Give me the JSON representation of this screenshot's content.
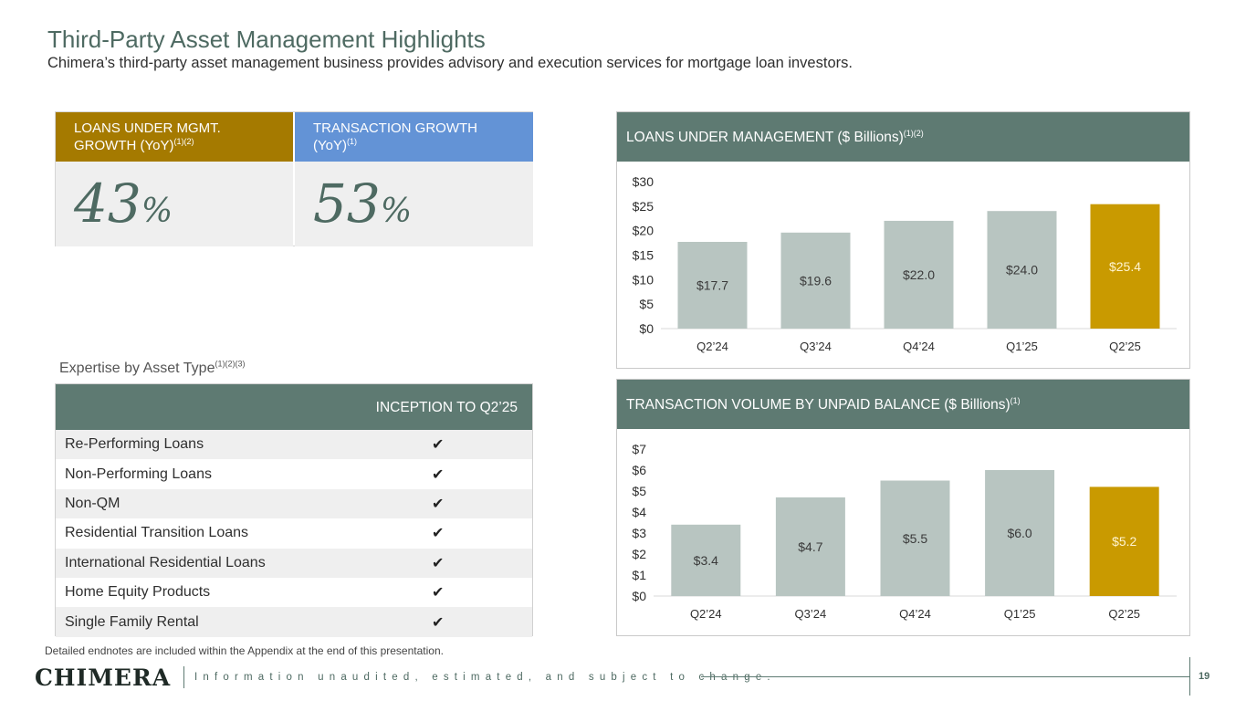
{
  "header": {
    "title": "Third-Party Asset Management Highlights",
    "subtitle": "Chimera’s third-party asset management business provides advisory and execution services for mortgage loan investors."
  },
  "kpis": [
    {
      "label_line1": "LOANS UNDER MGMT.",
      "label_line2": "GROWTH (YoY)",
      "notes": "(1)(2)",
      "value": "43",
      "unit": "%",
      "color": "#a57a00"
    },
    {
      "label_line1": "TRANSACTION GROWTH",
      "label_line2": "(YoY)",
      "notes": "(1)",
      "value": "53",
      "unit": "%",
      "color": "#6393d6"
    }
  ],
  "expertise": {
    "caption": "Expertise by Asset Type",
    "caption_notes": "(1)(2)(3)",
    "column_header": "INCEPTION TO Q2’25",
    "check_glyph": "✔",
    "rows": [
      "Re-Performing Loans",
      "Non-Performing Loans",
      "Non-QM",
      "Residential Transition Loans",
      "International Residential Loans",
      "Home Equity Products",
      "Single Family Rental"
    ]
  },
  "colors": {
    "header_green": "#5e7a72",
    "bar_default": "#b8c5c1",
    "bar_highlight": "#c99a00",
    "bar_label_default": "#3a3a3a",
    "bar_label_highlight": "#fff4d0"
  },
  "chart_data": [
    {
      "type": "bar",
      "title": "LOANS UNDER MANAGEMENT ($ Billions)",
      "title_notes": "(1)(2)",
      "categories": [
        "Q2’24",
        "Q3’24",
        "Q4’24",
        "Q1’25",
        "Q2’25"
      ],
      "values": [
        17.7,
        19.6,
        22.0,
        24.0,
        25.4
      ],
      "value_labels": [
        "$17.7",
        "$19.6",
        "$22.0",
        "$24.0",
        "$25.4"
      ],
      "highlight_index": 4,
      "ylim": [
        0,
        30
      ],
      "yticks": [
        0,
        5,
        10,
        15,
        20,
        25,
        30
      ],
      "ytick_labels": [
        "$0",
        "$5",
        "$10",
        "$15",
        "$20",
        "$25",
        "$30"
      ],
      "xlabel": "",
      "ylabel": ""
    },
    {
      "type": "bar",
      "title": "TRANSACTION VOLUME BY UNPAID BALANCE ($ Billions)",
      "title_notes": "(1)",
      "categories": [
        "Q2’24",
        "Q3’24",
        "Q4’24",
        "Q1’25",
        "Q2’25"
      ],
      "values": [
        3.4,
        4.7,
        5.5,
        6.0,
        5.2
      ],
      "value_labels": [
        "$3.4",
        "$4.7",
        "$5.5",
        "$6.0",
        "$5.2"
      ],
      "highlight_index": 4,
      "ylim": [
        0,
        7
      ],
      "yticks": [
        0,
        1,
        2,
        3,
        4,
        5,
        6,
        7
      ],
      "ytick_labels": [
        "$0",
        "$1",
        "$2",
        "$3",
        "$4",
        "$5",
        "$6",
        "$7"
      ],
      "xlabel": "",
      "ylabel": ""
    }
  ],
  "footer": {
    "endnote": "Detailed endnotes are included within the Appendix at the end of this presentation.",
    "logo_text": "CHIMERA",
    "disclaimer": "Information unaudited, estimated, and subject to change.",
    "page_number": "19"
  }
}
